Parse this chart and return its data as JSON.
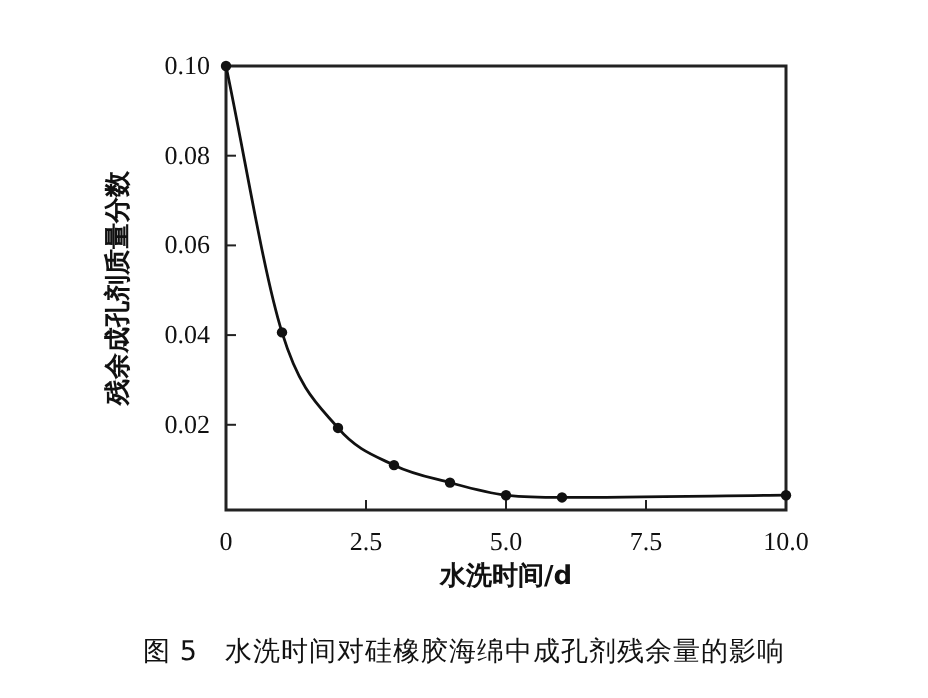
{
  "chart_data": {
    "type": "line",
    "xlabel": "水洗时间/d",
    "ylabel": "残余成孔剂质量分数",
    "annotations": [
      "图 5　水洗时间对硅橡胶海绵中成孔剂残余量的影响"
    ],
    "x": [
      0,
      1,
      2,
      3,
      4,
      5,
      6,
      10
    ],
    "series": [
      {
        "color": "#111111",
        "values": [
          0.1,
          0.0406,
          0.0193,
          0.011,
          0.0071,
          0.0043,
          0.0038,
          0.0043
        ]
      }
    ],
    "xlim": [
      0,
      10
    ],
    "xticks": [
      0,
      {
        "value": 2.5,
        "label": "2.5"
      },
      {
        "value": 5,
        "label": "5.0"
      },
      {
        "value": 7.5,
        "label": "7.5"
      },
      {
        "value": 10,
        "label": "10.0"
      }
    ],
    "ylim": [
      0.001,
      0.1
    ],
    "yticks": [
      {
        "value": 0.02,
        "label": "0.02"
      },
      {
        "value": 0.04,
        "label": "0.04"
      },
      {
        "value": 0.06,
        "label": "0.06"
      },
      {
        "value": 0.08,
        "label": "0.08"
      },
      {
        "value": 0.1,
        "label": "0.10"
      }
    ],
    "grid": false,
    "marker": "circle",
    "line_style": "solid"
  }
}
